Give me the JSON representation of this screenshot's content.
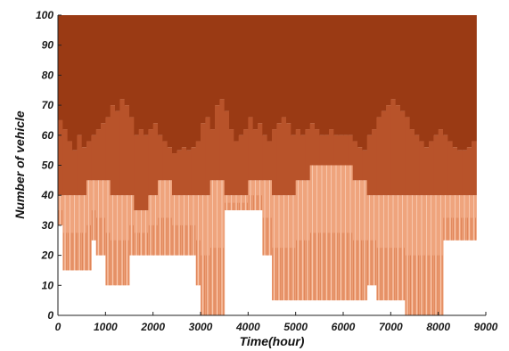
{
  "chart_data": {
    "type": "area",
    "title": "",
    "xlabel": "Time(hour)",
    "ylabel": "Number of vehicle",
    "xlim": [
      0,
      9000
    ],
    "ylim": [
      0,
      100
    ],
    "xticks": [
      0,
      1000,
      2000,
      3000,
      4000,
      5000,
      6000,
      7000,
      8000,
      9000
    ],
    "yticks": [
      0,
      10,
      20,
      30,
      40,
      50,
      60,
      70,
      80,
      90,
      100
    ],
    "grid": false,
    "legend": "none",
    "colors": {
      "dark": "#9a3a14",
      "light": "#efa47d",
      "axis": "#222222"
    },
    "series": [
      {
        "x": [
          0,
          100,
          200,
          300,
          400,
          500,
          600,
          700,
          800,
          900,
          1000,
          1100,
          1200,
          1300,
          1400,
          1500,
          1600,
          1700,
          1800,
          1900,
          2000,
          2100,
          2200,
          2300,
          2400,
          2500,
          2600,
          2700,
          2800,
          2900,
          3000,
          3100,
          3200,
          3300,
          3400,
          3500,
          3600,
          3700,
          3800,
          3900,
          4000,
          4100,
          4200,
          4300,
          4400,
          4500,
          4600,
          4700,
          4800,
          4900,
          5000,
          5100,
          5200,
          5300,
          5400,
          5500,
          5600,
          5700,
          5800,
          5900,
          6000,
          6100,
          6200,
          6300,
          6400,
          6500,
          6600,
          6700,
          6800,
          6900,
          7000,
          7100,
          7200,
          7300,
          7400,
          7500,
          7600,
          7700,
          7800,
          7900,
          8000,
          8100,
          8200,
          8300,
          8400,
          8500,
          8600,
          8700
        ],
        "high": [
          65,
          62,
          58,
          55,
          60,
          56,
          58,
          60,
          62,
          64,
          66,
          70,
          68,
          72,
          70,
          66,
          60,
          62,
          60,
          62,
          64,
          60,
          58,
          56,
          54,
          55,
          56,
          55,
          56,
          58,
          64,
          66,
          62,
          70,
          72,
          68,
          62,
          58,
          60,
          62,
          66,
          62,
          64,
          60,
          58,
          62,
          64,
          66,
          64,
          60,
          62,
          60,
          62,
          64,
          62,
          60,
          60,
          62,
          60,
          60,
          60,
          60,
          58,
          56,
          55,
          60,
          62,
          66,
          68,
          70,
          72,
          70,
          68,
          66,
          62,
          60,
          58,
          56,
          58,
          60,
          62,
          60,
          58,
          56,
          55,
          55,
          56,
          58
        ],
        "mid": [
          40,
          40,
          40,
          40,
          40,
          40,
          45,
          45,
          45,
          45,
          45,
          40,
          40,
          40,
          40,
          40,
          35,
          35,
          35,
          40,
          40,
          45,
          45,
          45,
          40,
          40,
          40,
          40,
          40,
          40,
          40,
          40,
          45,
          45,
          45,
          40,
          40,
          40,
          40,
          40,
          45,
          45,
          45,
          45,
          45,
          40,
          40,
          40,
          40,
          40,
          45,
          45,
          45,
          50,
          50,
          50,
          50,
          50,
          50,
          50,
          50,
          50,
          45,
          45,
          45,
          40,
          40,
          40,
          40,
          40,
          40,
          40,
          40,
          40,
          40,
          40,
          40,
          40,
          40,
          40,
          40,
          40,
          40,
          40,
          40,
          40,
          40,
          40
        ],
        "low": [
          30,
          15,
          15,
          15,
          15,
          15,
          15,
          25,
          20,
          20,
          10,
          10,
          10,
          10,
          10,
          20,
          20,
          20,
          20,
          20,
          20,
          20,
          20,
          20,
          20,
          20,
          20,
          20,
          20,
          10,
          0,
          0,
          0,
          0,
          0,
          35,
          35,
          35,
          35,
          35,
          35,
          35,
          35,
          20,
          20,
          5,
          5,
          5,
          5,
          5,
          5,
          5,
          5,
          5,
          5,
          5,
          5,
          5,
          5,
          5,
          5,
          5,
          5,
          5,
          5,
          10,
          10,
          5,
          5,
          5,
          5,
          5,
          5,
          0,
          0,
          0,
          0,
          0,
          0,
          0,
          0,
          25,
          25,
          25,
          25,
          25,
          25,
          25
        ]
      }
    ]
  }
}
